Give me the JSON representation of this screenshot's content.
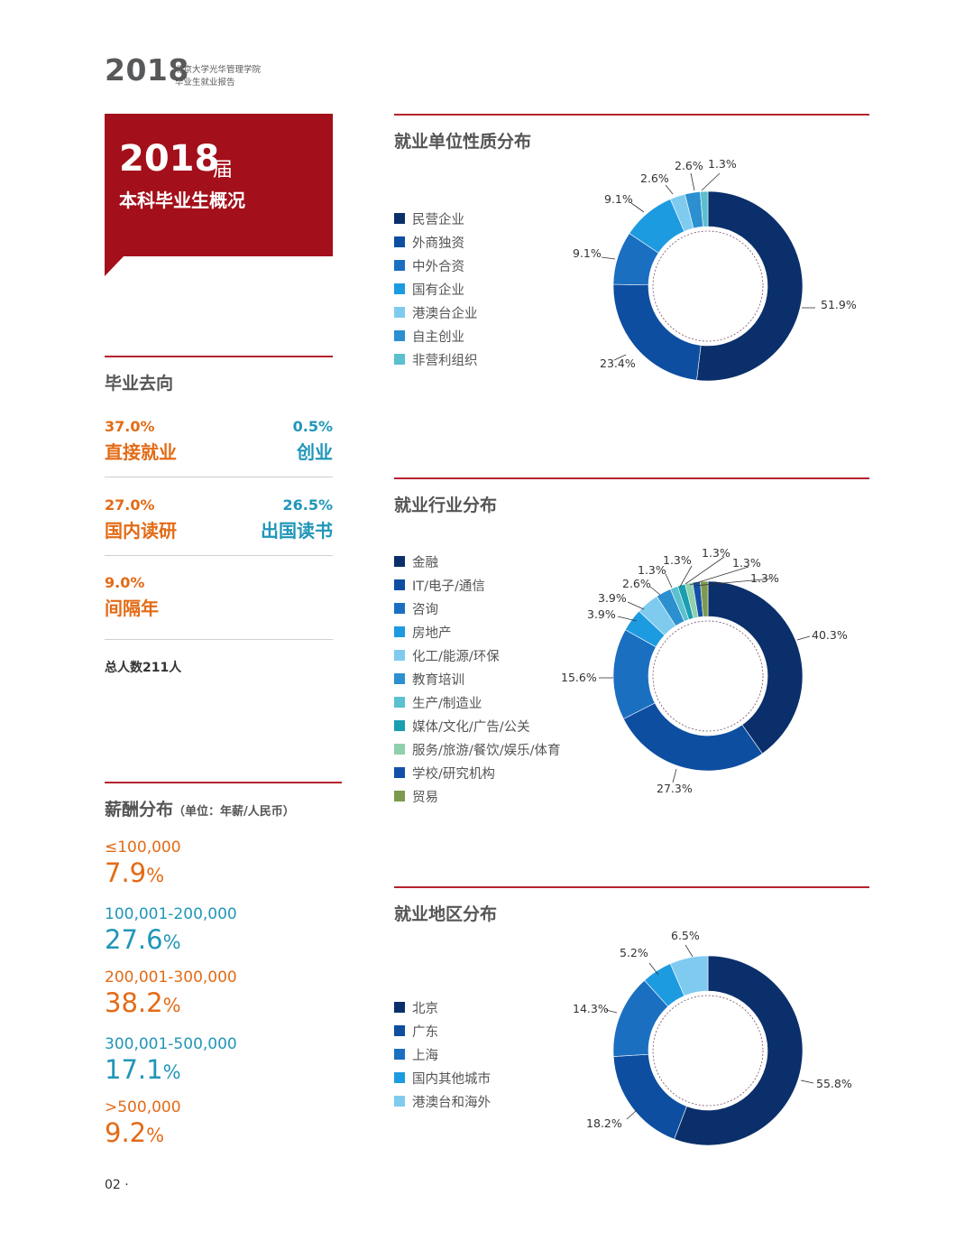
{
  "header": {
    "year": "2018",
    "school": "北京大学光华管理学院",
    "report": "毕业生就业报告"
  },
  "overview_box": {
    "year": "2018",
    "suffix": "届",
    "subtitle": "本科毕业生概况"
  },
  "destination": {
    "title": "毕业去向",
    "items": [
      {
        "pct": "37.0%",
        "label": "直接就业"
      },
      {
        "pct": "0.5%",
        "label": "创业"
      },
      {
        "pct": "27.0%",
        "label": "国内读研"
      },
      {
        "pct": "26.5%",
        "label": "出国读书"
      },
      {
        "pct": "9.0%",
        "label": "间隔年"
      }
    ],
    "total": "总人数211人"
  },
  "salary": {
    "title": "薪酬分布",
    "unit": "（单位：年薪/人民币）",
    "items": [
      {
        "range": "≤100,000",
        "value": "7.9",
        "unit": "%"
      },
      {
        "range": "100,001-200,000",
        "value": "27.6",
        "unit": "%"
      },
      {
        "range": "200,001-300,000",
        "value": "38.2",
        "unit": "%"
      },
      {
        "range": "300,001-500,000",
        "value": "17.1",
        "unit": "%"
      },
      {
        "range": ">500,000",
        "value": "9.2",
        "unit": "%"
      }
    ],
    "colors": [
      "#e36b16",
      "#2196b8"
    ]
  },
  "page_number": "02 ·",
  "chart_data": [
    {
      "type": "pie",
      "title": "就业单位性质分布",
      "categories": [
        "民营企业",
        "外商独资",
        "中外合资",
        "国有企业",
        "港澳台企业",
        "自主创业",
        "非营利组织"
      ],
      "values": [
        51.9,
        23.4,
        9.1,
        9.1,
        2.6,
        2.6,
        1.3
      ],
      "labels": [
        "51.9%",
        "23.4%",
        "9.1%",
        "9.1%",
        "2.6%",
        "2.6%",
        "1.3%"
      ],
      "colors": [
        "#0b2f6b",
        "#0d4ea0",
        "#1b6fc1",
        "#1d9be0",
        "#7fcbf0",
        "#2b8fd0",
        "#5bc0cf"
      ]
    },
    {
      "type": "pie",
      "title": "就业行业分布",
      "categories": [
        "金融",
        "IT/电子/通信",
        "咨询",
        "房地产",
        "化工/能源/环保",
        "教育培训",
        "生产/制造业",
        "媒体/文化/广告/公关",
        "服务/旅游/餐饮/娱乐/体育",
        "学校/研究机构",
        "贸易"
      ],
      "values": [
        40.3,
        27.3,
        15.6,
        3.9,
        3.9,
        2.6,
        1.3,
        1.3,
        1.3,
        1.3,
        1.3
      ],
      "labels": [
        "40.3%",
        "27.3%",
        "15.6%",
        "3.9%",
        "3.9%",
        "2.6%",
        "1.3%",
        "1.3%",
        "1.3%",
        "1.3%",
        "1.3%"
      ],
      "colors": [
        "#0b2f6b",
        "#0d4ea0",
        "#1b6fc1",
        "#1d9be0",
        "#7fcbf0",
        "#2b8fd0",
        "#5bc0cf",
        "#1a9eb0",
        "#8fd0ad",
        "#1450a8",
        "#7d9a4e"
      ]
    },
    {
      "type": "pie",
      "title": "就业地区分布",
      "categories": [
        "北京",
        "广东",
        "上海",
        "国内其他城市",
        "港澳台和海外"
      ],
      "values": [
        55.8,
        18.2,
        14.3,
        5.2,
        6.5
      ],
      "labels": [
        "55.8%",
        "18.2%",
        "14.3%",
        "5.2%",
        "6.5%"
      ],
      "colors": [
        "#0b2f6b",
        "#0d4ea0",
        "#1b6fc1",
        "#1d9be0",
        "#7fcbf0"
      ]
    }
  ]
}
